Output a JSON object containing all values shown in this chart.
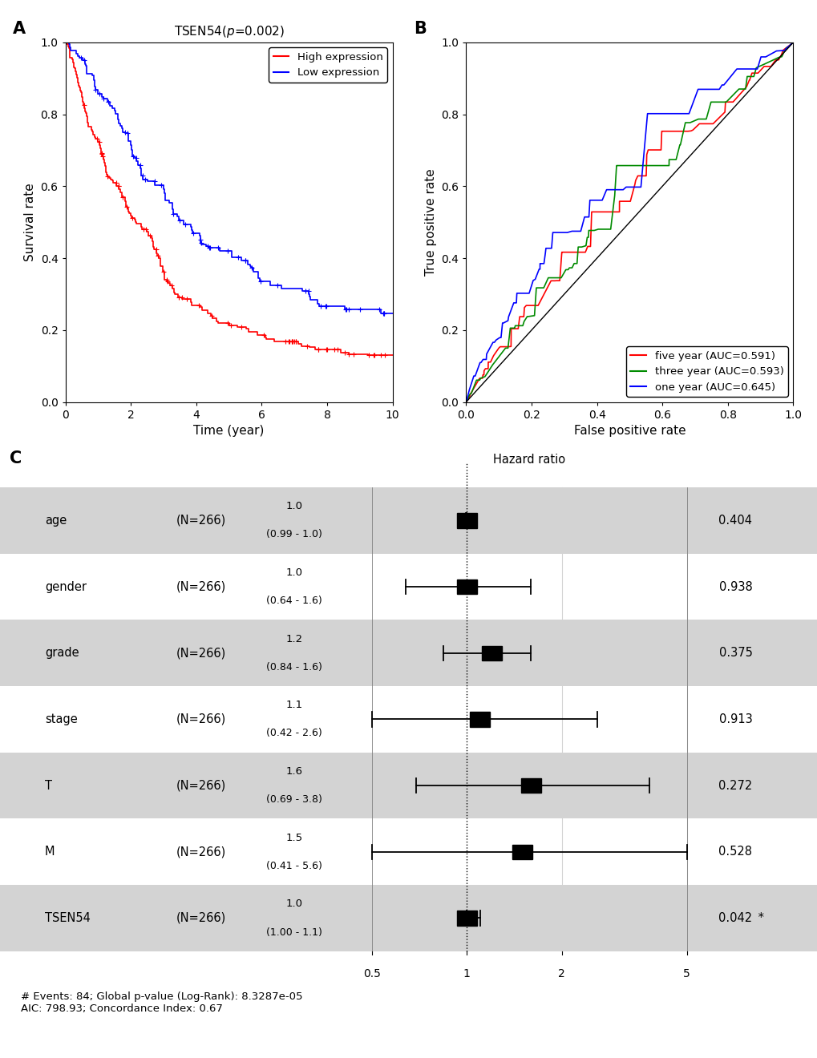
{
  "panel_a": {
    "xlabel": "Time (year)",
    "ylabel": "Survival rate",
    "xlim": [
      0,
      10
    ],
    "ylim": [
      0.0,
      1.0
    ],
    "xticks": [
      0,
      2,
      4,
      6,
      8,
      10
    ],
    "yticks": [
      0.0,
      0.2,
      0.4,
      0.6,
      0.8,
      1.0
    ],
    "high_color": "#FF0000",
    "low_color": "#0000FF",
    "legend": [
      "High expression",
      "Low expression"
    ],
    "label": "A"
  },
  "panel_b": {
    "xlabel": "False positive rate",
    "ylabel": "True positive rate",
    "xlim": [
      0.0,
      1.0
    ],
    "ylim": [
      0.0,
      1.0
    ],
    "xticks": [
      0.0,
      0.2,
      0.4,
      0.6,
      0.8,
      1.0
    ],
    "yticks": [
      0.0,
      0.2,
      0.4,
      0.6,
      0.8,
      1.0
    ],
    "five_year_color": "#FF0000",
    "three_year_color": "#008B00",
    "one_year_color": "#0000FF",
    "legend": [
      "five year (AUC=0.591)",
      "three year (AUC=0.593)",
      "one year (AUC=0.645)"
    ],
    "label": "B"
  },
  "panel_c": {
    "hazard_ratio_title": "Hazard ratio",
    "variables": [
      "age",
      "gender",
      "grade",
      "stage",
      "T",
      "M",
      "TSEN54"
    ],
    "n_labels": [
      "(N=266)",
      "(N=266)",
      "(N=266)",
      "(N=266)",
      "(N=266)",
      "(N=266)",
      "(N=266)"
    ],
    "hr_top": [
      "1.0",
      "1.0",
      "1.2",
      "1.1",
      "1.6",
      "1.5",
      "1.0"
    ],
    "hr_bot": [
      "(0.99 - 1.0)",
      "(0.64 - 1.6)",
      "(0.84 - 1.6)",
      "(0.42 - 2.6)",
      "(0.69 - 3.8)",
      "(0.41 - 5.6)",
      "(1.00 - 1.1)"
    ],
    "hr": [
      1.0,
      1.0,
      1.2,
      1.1,
      1.6,
      1.5,
      1.0
    ],
    "ci_low": [
      0.99,
      0.64,
      0.84,
      0.42,
      0.69,
      0.41,
      1.0
    ],
    "ci_high": [
      1.0,
      1.6,
      1.6,
      2.6,
      3.8,
      5.6,
      1.1
    ],
    "pvalues": [
      "0.404",
      "0.938",
      "0.375",
      "0.913",
      "0.272",
      "0.528",
      "0.042"
    ],
    "pvalue_stars": [
      false,
      false,
      false,
      false,
      false,
      false,
      true
    ],
    "shaded_rows": [
      0,
      2,
      4,
      6
    ],
    "footer": "# Events: 84; Global p-value (Log-Rank): 8.3287e-05\nAIC: 798.93; Concordance Index: 0.67",
    "bg_shaded": "#D3D3D3",
    "bg_white": "#FFFFFF",
    "log_xlim": [
      0.5,
      5.0
    ],
    "xtick_vals": [
      0.5,
      1.0,
      2.0,
      5.0
    ],
    "xtick_labels": [
      "0.5",
      "1",
      "2",
      "5"
    ],
    "label": "C"
  }
}
